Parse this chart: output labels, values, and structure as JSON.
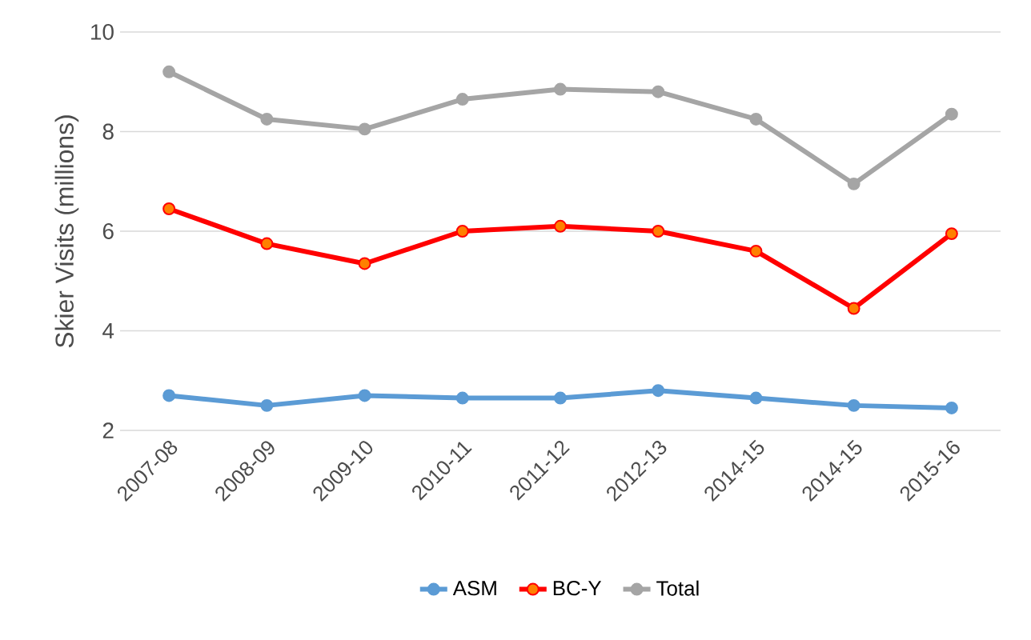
{
  "chart_data": {
    "type": "line",
    "ylabel": "Skier Visits (millions)",
    "categories": [
      "2007-08",
      "2008-09",
      "2009-10",
      "2010-11",
      "2011-12",
      "2012-13",
      "2014-15",
      "2014-15",
      "2015-16"
    ],
    "ylim": [
      2,
      10
    ],
    "yticks": [
      2,
      4,
      6,
      8,
      10
    ],
    "grid": "y",
    "legend": "bottom",
    "marker": "circle",
    "line_style": "solid",
    "series": [
      {
        "name": "ASM",
        "color": "#5b9bd5",
        "values": [
          2.7,
          2.5,
          2.7,
          2.65,
          2.65,
          2.8,
          2.65,
          2.5,
          2.45
        ]
      },
      {
        "name": "BC-Y",
        "color": "#ff0000",
        "values": [
          6.45,
          5.75,
          5.35,
          6.0,
          6.1,
          6.0,
          5.6,
          4.45,
          5.95
        ]
      },
      {
        "name": "Total",
        "color": "#a5a5a5",
        "values": [
          9.2,
          8.25,
          8.05,
          8.65,
          8.85,
          8.8,
          8.25,
          6.95,
          8.35
        ]
      }
    ]
  }
}
